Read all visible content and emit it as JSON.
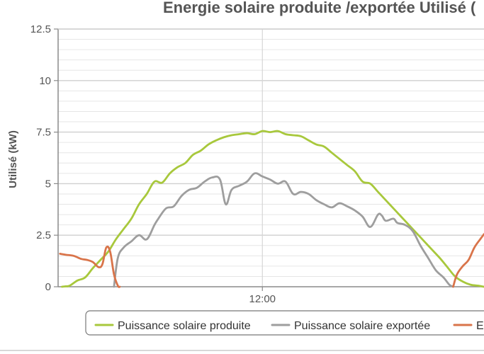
{
  "chart_data": {
    "type": "line",
    "title": "Energie solaire produite /exportée Utilisé (",
    "ylabel": "Utilisé (kW)",
    "xlabel": "",
    "ylim": [
      0,
      12.5
    ],
    "yticks": [
      "0",
      "2.5",
      "5",
      "7.5",
      "10",
      "12.5"
    ],
    "ytick_values": [
      0,
      2.5,
      5,
      7.5,
      10,
      12.5
    ],
    "xticks": [
      "12:00"
    ],
    "xtick_values": [
      12.0
    ],
    "xlim": [
      6.7,
      17.75
    ],
    "grid": true,
    "legend_position": "bottom",
    "series": [
      {
        "name": "Puissance solaire produite",
        "color": "#a8c83c",
        "x": [
          6.8,
          6.9,
          7.0,
          7.2,
          7.4,
          7.6,
          7.8,
          8.0,
          8.2,
          8.4,
          8.6,
          8.8,
          9.0,
          9.2,
          9.4,
          9.6,
          9.8,
          10.0,
          10.2,
          10.4,
          10.6,
          10.8,
          11.0,
          11.2,
          11.4,
          11.6,
          11.8,
          12.0,
          12.2,
          12.4,
          12.6,
          12.8,
          13.0,
          13.2,
          13.4,
          13.6,
          13.8,
          14.0,
          14.2,
          14.4,
          14.6,
          14.8,
          15.0,
          15.2,
          15.4,
          15.6,
          15.8,
          16.0,
          16.2,
          16.4,
          16.6,
          16.8,
          17.0,
          17.2,
          17.4,
          17.6,
          17.75
        ],
        "y": [
          0.0,
          0.02,
          0.05,
          0.3,
          0.45,
          0.9,
          1.3,
          1.7,
          2.3,
          2.8,
          3.3,
          4.0,
          4.5,
          5.1,
          5.05,
          5.5,
          5.8,
          6.0,
          6.4,
          6.6,
          6.9,
          7.1,
          7.25,
          7.35,
          7.4,
          7.45,
          7.4,
          7.55,
          7.5,
          7.55,
          7.4,
          7.35,
          7.3,
          7.1,
          6.9,
          6.8,
          6.5,
          6.2,
          5.9,
          5.6,
          5.1,
          5.0,
          4.6,
          4.2,
          3.8,
          3.4,
          3.0,
          2.6,
          2.2,
          1.8,
          1.4,
          0.95,
          0.5,
          0.25,
          0.1,
          0.05,
          0.0
        ]
      },
      {
        "name": "Puissance solaire exportée",
        "color": "#9e9e9e",
        "x": [
          8.15,
          8.25,
          8.4,
          8.6,
          8.8,
          9.0,
          9.2,
          9.3,
          9.5,
          9.7,
          9.9,
          10.1,
          10.3,
          10.5,
          10.7,
          10.9,
          11.05,
          11.2,
          11.4,
          11.6,
          11.8,
          12.0,
          12.2,
          12.4,
          12.6,
          12.8,
          13.0,
          13.2,
          13.4,
          13.6,
          13.8,
          14.0,
          14.2,
          14.4,
          14.6,
          14.8,
          15.0,
          15.1,
          15.2,
          15.4,
          15.5,
          15.7,
          15.9,
          16.1,
          16.3,
          16.5,
          16.7,
          16.85,
          16.95
        ],
        "y": [
          0.0,
          1.4,
          1.9,
          2.2,
          2.5,
          2.3,
          3.0,
          3.3,
          3.8,
          3.9,
          4.4,
          4.7,
          4.8,
          5.1,
          5.3,
          5.2,
          4.0,
          4.7,
          4.9,
          5.1,
          5.5,
          5.35,
          5.2,
          5.0,
          5.1,
          4.5,
          4.6,
          4.5,
          4.2,
          4.0,
          3.85,
          4.05,
          3.9,
          3.7,
          3.4,
          2.9,
          3.5,
          3.45,
          3.2,
          3.3,
          3.1,
          3.0,
          2.7,
          2.0,
          1.4,
          0.8,
          0.45,
          0.1,
          0.0
        ]
      },
      {
        "name": "El",
        "color": "#d9744a",
        "x": [
          6.75,
          6.9,
          7.1,
          7.3,
          7.45,
          7.6,
          7.75,
          7.85,
          7.95,
          8.05,
          8.15,
          8.25,
          8.3,
          16.95,
          17.05,
          17.2,
          17.35,
          17.5,
          17.65,
          17.75
        ],
        "y": [
          1.6,
          1.55,
          1.5,
          1.35,
          1.3,
          1.2,
          0.95,
          1.1,
          1.9,
          1.7,
          0.6,
          0.05,
          0.0,
          0.0,
          0.6,
          1.0,
          1.3,
          1.9,
          2.3,
          2.55
        ]
      }
    ]
  }
}
